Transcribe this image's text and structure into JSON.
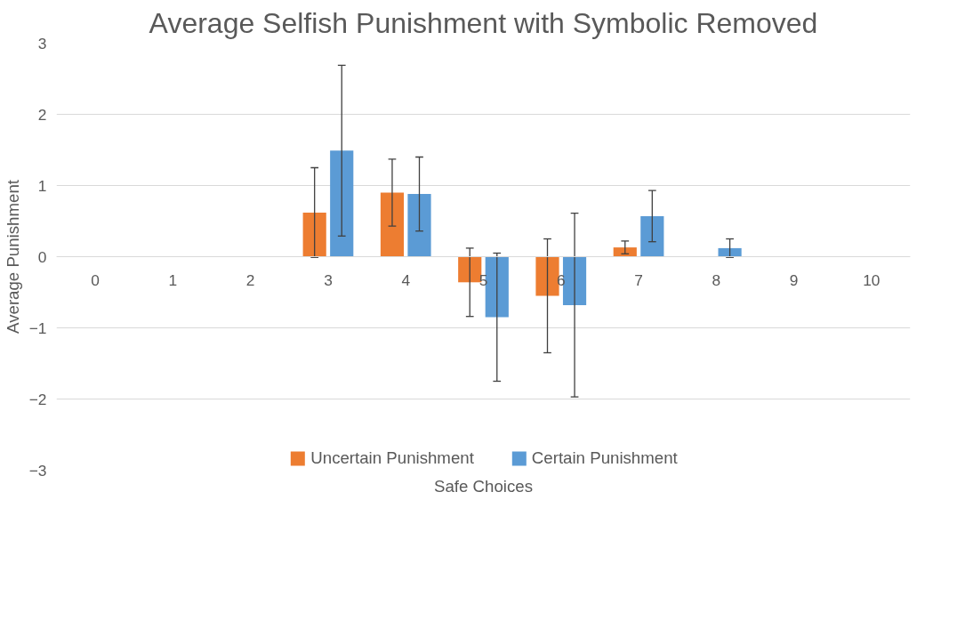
{
  "chart_data": {
    "type": "bar",
    "title": "Average Selfish Punishment with Symbolic Removed",
    "xlabel": "Safe Choices",
    "ylabel": "Average Punishment",
    "categories": [
      "0",
      "1",
      "2",
      "3",
      "4",
      "5",
      "6",
      "7",
      "8",
      "9",
      "10"
    ],
    "series": [
      {
        "name": "Uncertain Punishment",
        "color": "#ed7d31",
        "values": [
          0,
          null,
          null,
          0.62,
          0.9,
          -0.36,
          -0.55,
          0.13,
          0,
          null,
          0
        ],
        "errors": [
          null,
          null,
          null,
          0.63,
          0.47,
          0.48,
          0.8,
          0.09,
          null,
          null,
          null
        ]
      },
      {
        "name": "Certain Punishment",
        "color": "#5b9bd5",
        "values": [
          0,
          null,
          null,
          1.49,
          0.88,
          -0.85,
          -0.68,
          0.57,
          0.12,
          null,
          0
        ],
        "errors": [
          null,
          null,
          null,
          1.2,
          0.52,
          0.9,
          1.29,
          0.36,
          0.13,
          null,
          null
        ]
      }
    ],
    "ylim": [
      -3,
      3
    ],
    "yticks": [
      -3,
      -2,
      -1,
      0,
      1,
      2,
      3
    ],
    "grid": "y",
    "legend": "bottom"
  }
}
